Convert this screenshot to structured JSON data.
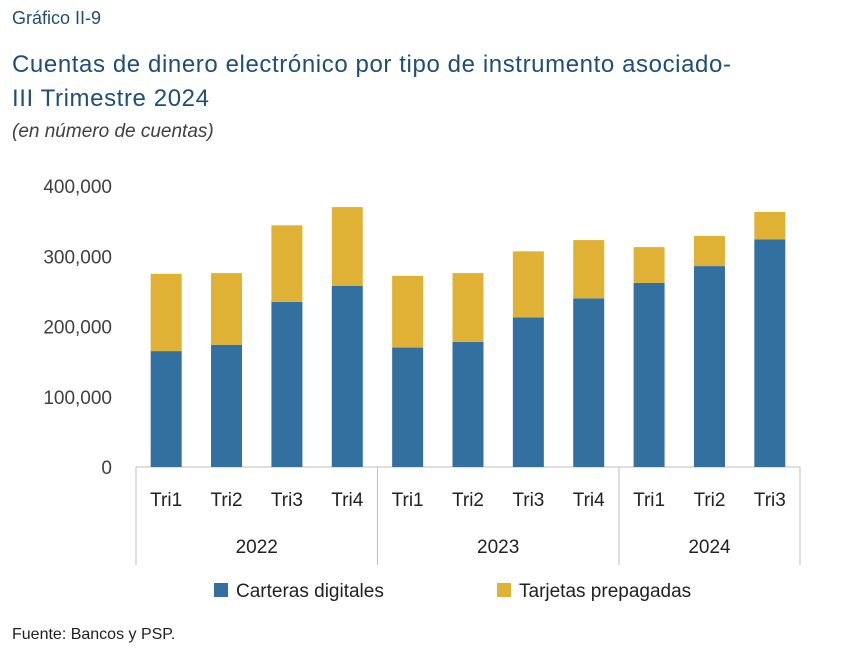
{
  "header": {
    "kicker": "Gráfico II-9",
    "title_line1": "Cuentas de dinero electrónico por tipo de instrumento asociado-",
    "title_line2": "III Trimestre 2024",
    "subtitle": "(en número de cuentas)"
  },
  "source": "Fuente: Bancos y PSP.",
  "colors": {
    "carteras": "#336f9f",
    "tarjetas": "#dfb235",
    "axis": "#bfbfbf"
  },
  "chart_data": {
    "type": "bar",
    "stacked": true,
    "groups": [
      {
        "label": "2022",
        "categories": [
          "Tri1",
          "Tri2",
          "Tri3",
          "Tri4"
        ]
      },
      {
        "label": "2023",
        "categories": [
          "Tri1",
          "Tri2",
          "Tri3",
          "Tri4"
        ]
      },
      {
        "label": "2024",
        "categories": [
          "Tri1",
          "Tri2",
          "Tri3"
        ]
      }
    ],
    "series": [
      {
        "name": "Carteras digitales",
        "values": [
          165000,
          174000,
          235000,
          258000,
          170000,
          178000,
          213000,
          240000,
          262000,
          286000,
          324000
        ]
      },
      {
        "name": "Tarjetas prepagadas",
        "values": [
          110000,
          102000,
          109000,
          112000,
          102000,
          98000,
          94000,
          83000,
          51000,
          43000,
          39000
        ]
      }
    ],
    "ylim": [
      0,
      400000
    ],
    "yticks": [
      0,
      100000,
      200000,
      300000,
      400000
    ],
    "ytick_labels": [
      "0",
      "100,000",
      "200,000",
      "300,000",
      "400,000"
    ],
    "grid": false,
    "legend_position": "bottom"
  }
}
